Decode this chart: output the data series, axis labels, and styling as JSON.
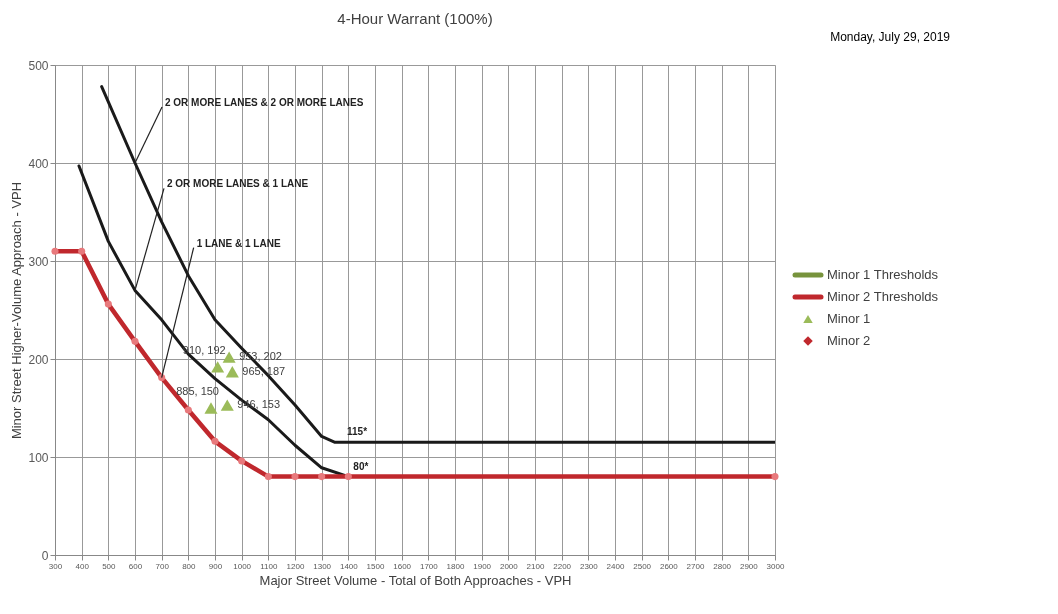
{
  "chart_data": {
    "type": "line",
    "title": "4-Hour Warrant (100%)",
    "xlabel": "Major Street Volume - Total of Both Approaches - VPH",
    "ylabel": "Minor Street Higher-Volume Approach - VPH",
    "xlim": [
      300,
      3000
    ],
    "xticks": [
      300,
      400,
      500,
      600,
      700,
      800,
      900,
      1000,
      1100,
      1200,
      1300,
      1400,
      1500,
      1600,
      1700,
      1800,
      1900,
      2000,
      2100,
      2200,
      2300,
      2400,
      2500,
      2600,
      2700,
      2800,
      2900,
      3000
    ],
    "ylim": [
      0,
      500
    ],
    "yticks": [
      0,
      100,
      200,
      300,
      400,
      500
    ],
    "grid": true,
    "legend": "right",
    "line_style": "solid",
    "series": [
      {
        "color": "#1a1a1a",
        "x": [
          475,
          600,
          700,
          800,
          900,
          1000,
          1100,
          1200,
          1300,
          1350,
          3000
        ],
        "values": [
          478,
          400,
          340,
          285,
          240,
          211,
          183,
          153,
          121,
          115,
          115
        ]
      },
      {
        "color": "#1a1a1a",
        "x": [
          390,
          500,
          600,
          700,
          800,
          900,
          1000,
          1100,
          1200,
          1300,
          1400
        ],
        "values": [
          397,
          320,
          270,
          240,
          205,
          180,
          158,
          138,
          112,
          89,
          80
        ]
      },
      {
        "name": "Minor 1 Thresholds",
        "color": "#77933c"
      },
      {
        "name": "Minor 2 Thresholds",
        "color": "#c0282d",
        "marker": "circle",
        "x": [
          300,
          400,
          500,
          600,
          700,
          800,
          900,
          1000,
          1100,
          1200,
          1300,
          1400,
          3000
        ],
        "values": [
          310,
          310,
          256,
          218,
          181,
          148,
          116,
          96,
          80,
          80,
          80,
          80,
          80
        ]
      },
      {
        "name": "Minor 1",
        "type": "scatter",
        "marker": "triangle",
        "color": "#9bbb59",
        "x": [
          953,
          910,
          965,
          885,
          946
        ],
        "values": [
          202,
          192,
          187,
          150,
          153
        ],
        "value_labels": [
          "953, 202",
          "910, 192",
          "965, 187",
          "885, 150",
          "946, 153"
        ]
      },
      {
        "name": "Minor 2",
        "type": "scatter",
        "marker": "diamond",
        "color": "#c0282d"
      }
    ],
    "annotations": [
      "Monday, July 29, 2019",
      {
        "text": "2 OR MORE LANES & 2 OR MORE LANES",
        "x": 600,
        "y": 400
      },
      {
        "text": "2 OR MORE LANES & 1 LANE",
        "x": 600,
        "y": 270
      },
      {
        "text": "1 LANE & 1 LANE",
        "x": 700,
        "y": 181
      },
      {
        "text": "115*",
        "x": 1350,
        "y": 115
      },
      {
        "text": "80*",
        "x": 1400,
        "y": 80
      }
    ]
  }
}
